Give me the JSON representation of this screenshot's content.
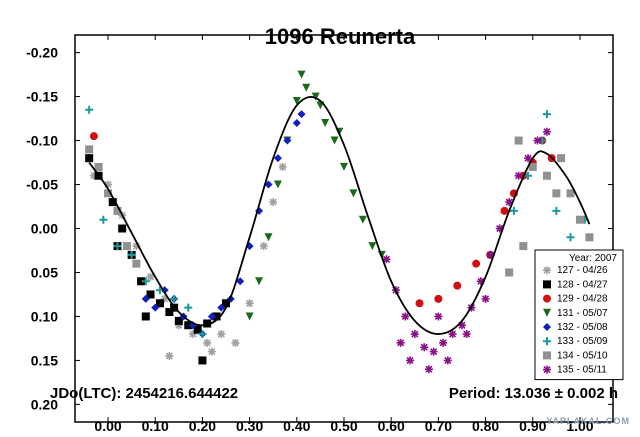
{
  "chart_data": {
    "type": "scatter",
    "title": "1096 Reunerta",
    "xlabel": "",
    "ylabel": "",
    "xlim": [
      -0.07,
      1.07
    ],
    "ylim": [
      0.22,
      -0.22
    ],
    "y_inverted": true,
    "grid": false,
    "legend_position": "bottom-right",
    "legend_title": "Year: 2007",
    "x_ticks": [
      "0.00",
      "0.10",
      "0.20",
      "0.30",
      "0.40",
      "0.50",
      "0.60",
      "0.70",
      "0.80",
      "0.90",
      "1.00"
    ],
    "y_ticks": [
      "-0.20",
      "-0.15",
      "-0.10",
      "-0.05",
      "0.00",
      "0.05",
      "0.10",
      "0.15",
      "0.20"
    ],
    "jd_text": "JDo(LTC): 2454216.644422",
    "period_text": "Period: 13.036 ± 0.002 h",
    "watermark": "YAPLAKAL.COM",
    "fit_curve": {
      "x": [
        -0.04,
        0.0,
        0.05,
        0.1,
        0.15,
        0.2,
        0.25,
        0.3,
        0.35,
        0.4,
        0.45,
        0.5,
        0.55,
        0.6,
        0.65,
        0.7,
        0.75,
        0.8,
        0.85,
        0.9,
        0.93,
        0.97,
        1.0,
        1.02
      ],
      "y": [
        -0.075,
        -0.045,
        0.005,
        0.055,
        0.095,
        0.11,
        0.09,
        0.01,
        -0.08,
        -0.14,
        -0.145,
        -0.095,
        -0.015,
        0.06,
        0.105,
        0.12,
        0.105,
        0.055,
        -0.02,
        -0.08,
        -0.085,
        -0.06,
        -0.03,
        -0.005
      ]
    },
    "series": [
      {
        "name": "127 - 04/26",
        "color": "#a0a0a0",
        "marker": "asterisk",
        "x": [
          -0.03,
          0.0,
          0.03,
          0.06,
          0.09,
          0.12,
          0.15,
          0.18,
          0.21,
          0.24,
          0.27,
          0.3,
          0.33,
          0.35,
          0.37,
          0.13,
          0.22
        ],
        "y": [
          -0.06,
          -0.05,
          -0.015,
          0.02,
          0.055,
          0.08,
          0.11,
          0.12,
          0.13,
          0.12,
          0.13,
          0.085,
          0.02,
          -0.03,
          -0.07,
          0.145,
          0.14
        ]
      },
      {
        "name": "128 - 04/27",
        "color": "#000000",
        "marker": "square",
        "x": [
          -0.04,
          -0.02,
          0.01,
          0.03,
          0.05,
          0.07,
          0.09,
          0.11,
          0.13,
          0.15,
          0.17,
          0.19,
          0.21,
          0.23,
          0.25,
          0.02,
          0.08,
          0.14,
          0.2
        ],
        "y": [
          -0.08,
          -0.06,
          -0.03,
          0.0,
          0.03,
          0.06,
          0.075,
          0.085,
          0.095,
          0.105,
          0.11,
          0.115,
          0.108,
          0.1,
          0.085,
          0.02,
          0.1,
          0.09,
          0.15
        ]
      },
      {
        "name": "129 - 04/28",
        "color": "#d01010",
        "marker": "circle",
        "x": [
          -0.03,
          0.66,
          0.7,
          0.74,
          0.78,
          0.81,
          0.84,
          0.86,
          0.88,
          0.9,
          0.92,
          0.94
        ],
        "y": [
          -0.105,
          0.085,
          0.08,
          0.065,
          0.04,
          0.03,
          -0.02,
          -0.04,
          -0.06,
          -0.075,
          -0.1,
          -0.08
        ]
      },
      {
        "name": "131 - 05/07",
        "color": "#1a6a1a",
        "marker": "triangle-down",
        "x": [
          0.3,
          0.32,
          0.34,
          0.36,
          0.38,
          0.4,
          0.42,
          0.44,
          0.46,
          0.48,
          0.5,
          0.52,
          0.54,
          0.56,
          0.58,
          0.41,
          0.45,
          0.49
        ],
        "y": [
          0.1,
          0.06,
          0.01,
          -0.05,
          -0.1,
          -0.145,
          -0.16,
          -0.15,
          -0.12,
          -0.1,
          -0.07,
          -0.04,
          -0.01,
          0.02,
          0.03,
          -0.175,
          -0.14,
          -0.11
        ]
      },
      {
        "name": "132 - 05/08",
        "color": "#1020c0",
        "marker": "diamond",
        "x": [
          0.08,
          0.1,
          0.12,
          0.14,
          0.16,
          0.18,
          0.2,
          0.22,
          0.24,
          0.26,
          0.28,
          0.3,
          0.32,
          0.34,
          0.36,
          0.38,
          0.4,
          0.41
        ],
        "y": [
          0.08,
          0.09,
          0.07,
          0.08,
          0.1,
          0.11,
          0.12,
          0.1,
          0.09,
          0.08,
          0.06,
          0.02,
          -0.02,
          -0.05,
          -0.08,
          -0.1,
          -0.12,
          -0.13
        ]
      },
      {
        "name": "133 - 05/09",
        "color": "#1a9a9a",
        "marker": "plus",
        "x": [
          -0.04,
          -0.01,
          0.02,
          0.05,
          0.08,
          0.11,
          0.14,
          0.17,
          0.2,
          0.86,
          0.89,
          0.92,
          0.95,
          0.98,
          1.01,
          0.93
        ],
        "y": [
          -0.135,
          -0.01,
          0.02,
          0.03,
          0.06,
          0.07,
          0.08,
          0.09,
          0.12,
          -0.02,
          -0.06,
          -0.1,
          -0.02,
          0.01,
          -0.01,
          -0.13
        ]
      },
      {
        "name": "134 - 05/10",
        "color": "#909090",
        "marker": "square",
        "x": [
          -0.04,
          -0.02,
          0.0,
          0.02,
          0.04,
          0.06,
          0.85,
          0.88,
          0.9,
          0.93,
          0.96,
          0.98,
          1.0,
          1.02,
          0.87,
          0.95
        ],
        "y": [
          -0.09,
          -0.07,
          -0.04,
          -0.02,
          0.02,
          0.04,
          0.05,
          0.02,
          -0.07,
          -0.06,
          -0.08,
          -0.04,
          -0.01,
          0.01,
          -0.1,
          -0.04
        ]
      },
      {
        "name": "135 - 05/11",
        "color": "#8a108a",
        "marker": "asterisk",
        "x": [
          0.59,
          0.61,
          0.63,
          0.65,
          0.67,
          0.69,
          0.71,
          0.73,
          0.75,
          0.77,
          0.79,
          0.81,
          0.83,
          0.85,
          0.87,
          0.89,
          0.91,
          0.93,
          0.64,
          0.68,
          0.72,
          0.76,
          0.8,
          0.62,
          0.7
        ],
        "y": [
          0.035,
          0.07,
          0.1,
          0.12,
          0.135,
          0.14,
          0.13,
          0.12,
          0.11,
          0.09,
          0.06,
          0.03,
          0.0,
          -0.03,
          -0.06,
          -0.08,
          -0.1,
          -0.11,
          0.15,
          0.16,
          0.15,
          0.12,
          0.08,
          0.13,
          0.1
        ]
      }
    ]
  }
}
